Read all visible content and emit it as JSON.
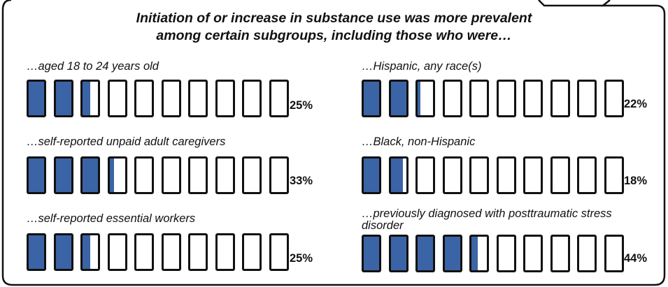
{
  "title_lines": [
    "Initiation of or increase in substance use was more prevalent",
    "among certain subgroups, including those who were…"
  ],
  "colors": {
    "fill": "#3b64a6",
    "outline": "#111111",
    "background": "#ffffff"
  },
  "chart_data": {
    "type": "bar",
    "encoding": "icon array of 10 segments, each 10%",
    "title": "Initiation of or increase in substance use was more prevalent among certain subgroups, including those who were…",
    "categories": [
      "…aged 18 to 24 years old",
      "…self-reported unpaid adult caregivers",
      "…self-reported essential workers",
      "…Hispanic, any race(s)",
      "…Black, non-Hispanic",
      "…previously diagnosed with posttraumatic stress disorder"
    ],
    "values": [
      25,
      33,
      25,
      22,
      18,
      44
    ],
    "value_labels": [
      "25%",
      "33%",
      "25%",
      "22%",
      "18%",
      "44%"
    ],
    "unit": "%",
    "ylim": [
      0,
      100
    ]
  }
}
